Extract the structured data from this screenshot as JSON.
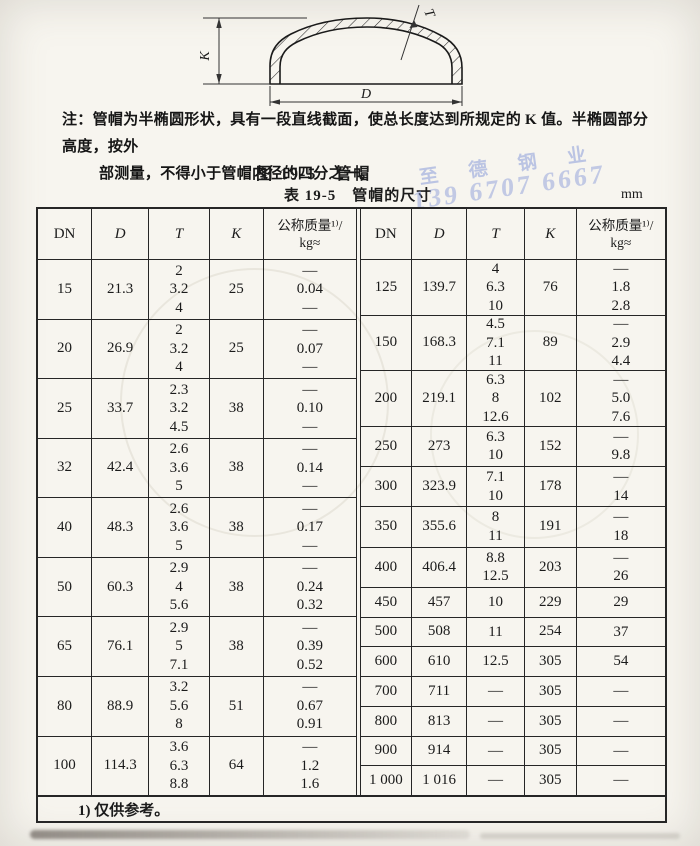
{
  "page": {
    "note_line1": "注：管帽为半椭圆形状，具有一段直线截面，使总长度达到所规定的 K 值。半椭圆部分高度，按外",
    "note_line2": "部测量，不得小于管帽内径的四分之一。",
    "figure_caption": "图 19-5　管帽",
    "table_caption": "表 19-5　管帽的尺寸",
    "unit_label": "mm",
    "footnote": "1) 仅供参考。"
  },
  "diagram": {
    "label_k": "K",
    "label_d": "D",
    "label_t": "T"
  },
  "watermark": {
    "company": "至 德 钢 业",
    "phone": "139 6707 6667",
    "color": "#8094d8"
  },
  "table": {
    "header": {
      "dn": "DN",
      "d": "D",
      "t": "T",
      "k": "K",
      "mass_line1": "公称质量¹⁾/",
      "mass_line2": "kg≈"
    },
    "left_rows": [
      {
        "dn": "15",
        "d": "21.3",
        "t": [
          "2",
          "3.2",
          "4"
        ],
        "k": "25",
        "mass": [
          "—",
          "0.04",
          "—"
        ]
      },
      {
        "dn": "20",
        "d": "26.9",
        "t": [
          "2",
          "3.2",
          "4"
        ],
        "k": "25",
        "mass": [
          "—",
          "0.07",
          "—"
        ]
      },
      {
        "dn": "25",
        "d": "33.7",
        "t": [
          "2.3",
          "3.2",
          "4.5"
        ],
        "k": "38",
        "mass": [
          "—",
          "0.10",
          "—"
        ]
      },
      {
        "dn": "32",
        "d": "42.4",
        "t": [
          "2.6",
          "3.6",
          "5"
        ],
        "k": "38",
        "mass": [
          "—",
          "0.14",
          "—"
        ]
      },
      {
        "dn": "40",
        "d": "48.3",
        "t": [
          "2.6",
          "3.6",
          "5"
        ],
        "k": "38",
        "mass": [
          "—",
          "0.17",
          "—"
        ]
      },
      {
        "dn": "50",
        "d": "60.3",
        "t": [
          "2.9",
          "4",
          "5.6"
        ],
        "k": "38",
        "mass": [
          "—",
          "0.24",
          "0.32"
        ]
      },
      {
        "dn": "65",
        "d": "76.1",
        "t": [
          "2.9",
          "5",
          "7.1"
        ],
        "k": "38",
        "mass": [
          "—",
          "0.39",
          "0.52"
        ]
      },
      {
        "dn": "80",
        "d": "88.9",
        "t": [
          "3.2",
          "5.6",
          "8"
        ],
        "k": "51",
        "mass": [
          "—",
          "0.67",
          "0.91"
        ]
      },
      {
        "dn": "100",
        "d": "114.3",
        "t": [
          "3.6",
          "6.3",
          "8.8"
        ],
        "k": "64",
        "mass": [
          "—",
          "1.2",
          "1.6"
        ]
      }
    ],
    "right_rows": [
      {
        "dn": "125",
        "d": "139.7",
        "t": [
          "4",
          "6.3",
          "10"
        ],
        "k": "76",
        "mass": [
          "—",
          "1.8",
          "2.8"
        ]
      },
      {
        "dn": "150",
        "d": "168.3",
        "t": [
          "4.5",
          "7.1",
          "11"
        ],
        "k": "89",
        "mass": [
          "—",
          "2.9",
          "4.4"
        ]
      },
      {
        "dn": "200",
        "d": "219.1",
        "t": [
          "6.3",
          "8",
          "12.6"
        ],
        "k": "102",
        "mass": [
          "—",
          "5.0",
          "7.6"
        ]
      },
      {
        "dn": "250",
        "d": "273",
        "t": [
          "6.3",
          "10"
        ],
        "k": "152",
        "mass": [
          "—",
          "9.8"
        ]
      },
      {
        "dn": "300",
        "d": "323.9",
        "t": [
          "7.1",
          "10"
        ],
        "k": "178",
        "mass": [
          "—",
          "14"
        ]
      },
      {
        "dn": "350",
        "d": "355.6",
        "t": [
          "8",
          "11"
        ],
        "k": "191",
        "mass": [
          "—",
          "18"
        ]
      },
      {
        "dn": "400",
        "d": "406.4",
        "t": [
          "8.8",
          "12.5"
        ],
        "k": "203",
        "mass": [
          "—",
          "26"
        ]
      },
      {
        "dn": "450",
        "d": "457",
        "t": [
          "10"
        ],
        "k": "229",
        "mass": [
          "29"
        ]
      },
      {
        "dn": "500",
        "d": "508",
        "t": [
          "11"
        ],
        "k": "254",
        "mass": [
          "37"
        ]
      },
      {
        "dn": "600",
        "d": "610",
        "t": [
          "12.5"
        ],
        "k": "305",
        "mass": [
          "54"
        ]
      },
      {
        "dn": "700",
        "d": "711",
        "t": [
          "—"
        ],
        "k": "305",
        "mass": [
          "—"
        ]
      },
      {
        "dn": "800",
        "d": "813",
        "t": [
          "—"
        ],
        "k": "305",
        "mass": [
          "—"
        ]
      },
      {
        "dn": "900",
        "d": "914",
        "t": [
          "—"
        ],
        "k": "305",
        "mass": [
          "—"
        ]
      },
      {
        "dn": "1 000",
        "d": "1 016",
        "t": [
          "—"
        ],
        "k": "305",
        "mass": [
          "—"
        ]
      }
    ]
  }
}
